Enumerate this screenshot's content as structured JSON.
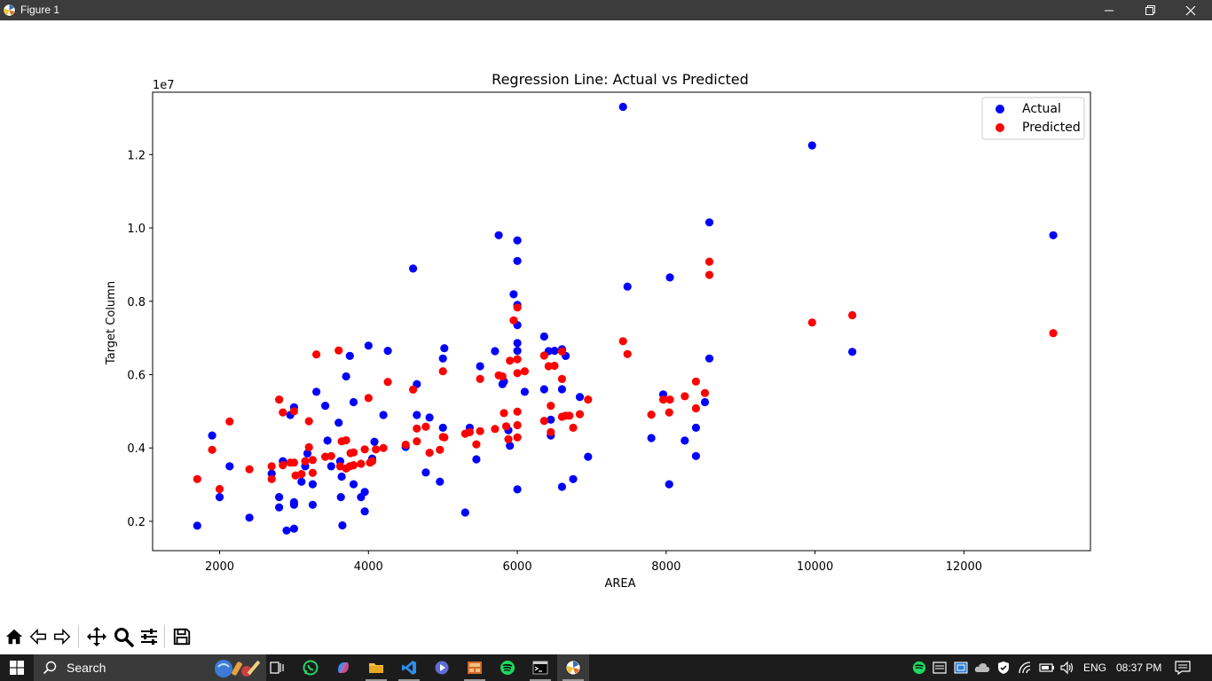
{
  "window": {
    "title": "Figure 1"
  },
  "toolbar": {
    "buttons": [
      "home-icon",
      "back-arrow-icon",
      "forward-arrow-icon",
      "pan-icon",
      "zoom-icon",
      "configure-subplots-icon",
      "save-icon"
    ]
  },
  "taskbar": {
    "search_placeholder": "Search",
    "apps": [
      "task-view-icon",
      "whatsapp-icon",
      "copilot-icon",
      "file-explorer-icon",
      "vscode-icon",
      "media-app-icon",
      "app-icon",
      "spotify-icon",
      "terminal-icon",
      "matplotlib-figure-icon"
    ],
    "language": "ENG",
    "time": "08:37 PM"
  },
  "colors": {
    "actual": "#0000ff",
    "predicted": "#ff0000",
    "titlebar": "#3c3c3c",
    "taskbar": "#1c1c1c"
  },
  "chart_data": {
    "type": "scatter",
    "title": "Regression Line: Actual vs Predicted",
    "xlabel": "AREA",
    "ylabel": "Target Column",
    "y_offset_label": "1e7",
    "xlim": [
      1100,
      13700
    ],
    "ylim": [
      1200000,
      13700000
    ],
    "xticks": [
      2000,
      4000,
      6000,
      8000,
      10000,
      12000
    ],
    "xtick_labels": [
      "2000",
      "4000",
      "6000",
      "8000",
      "10000",
      "12000"
    ],
    "yticks": [
      2000000,
      4000000,
      6000000,
      8000000,
      10000000,
      12000000
    ],
    "ytick_labels": [
      "0.2",
      "0.4",
      "0.6",
      "0.8",
      "1.0",
      "1.2"
    ],
    "grid": false,
    "legend_position": "top-right",
    "series": [
      {
        "name": "Actual",
        "color": "#0000ff",
        "points": [
          [
            1700,
            1880000
          ],
          [
            1900,
            4340000
          ],
          [
            2000,
            2660000
          ],
          [
            2135,
            3500000
          ],
          [
            2400,
            2100000
          ],
          [
            2700,
            3300000
          ],
          [
            2800,
            2660000
          ],
          [
            2800,
            2380000
          ],
          [
            2850,
            3640000
          ],
          [
            2900,
            1750000
          ],
          [
            2950,
            4900000
          ],
          [
            3000,
            5110000
          ],
          [
            3000,
            2520000
          ],
          [
            3000,
            2450000
          ],
          [
            3000,
            1800000
          ],
          [
            3100,
            3080000
          ],
          [
            3150,
            3500000
          ],
          [
            3180,
            3850000
          ],
          [
            3250,
            3010000
          ],
          [
            3250,
            2450000
          ],
          [
            3300,
            5530000
          ],
          [
            3420,
            5150000
          ],
          [
            3450,
            4200000
          ],
          [
            3500,
            3500000
          ],
          [
            3600,
            4690000
          ],
          [
            3620,
            3640000
          ],
          [
            3640,
            3220000
          ],
          [
            3630,
            2660000
          ],
          [
            3650,
            1890000
          ],
          [
            3700,
            5950000
          ],
          [
            3750,
            6510000
          ],
          [
            3800,
            5250000
          ],
          [
            3800,
            3010000
          ],
          [
            3900,
            2660000
          ],
          [
            3950,
            2800000
          ],
          [
            3950,
            2270000
          ],
          [
            4000,
            6790000
          ],
          [
            4050,
            3710000
          ],
          [
            4080,
            4170000
          ],
          [
            4200,
            4900000
          ],
          [
            4260,
            6650000
          ],
          [
            4500,
            4030000
          ],
          [
            4600,
            8890000
          ],
          [
            4650,
            5740000
          ],
          [
            4650,
            4900000
          ],
          [
            4770,
            3330000
          ],
          [
            4820,
            4830000
          ],
          [
            4960,
            3080000
          ],
          [
            5000,
            4550000
          ],
          [
            5000,
            6440000
          ],
          [
            5020,
            6720000
          ],
          [
            5300,
            2240000
          ],
          [
            5360,
            4550000
          ],
          [
            5450,
            3690000
          ],
          [
            5500,
            6230000
          ],
          [
            5700,
            6640000
          ],
          [
            5750,
            9800000
          ],
          [
            5800,
            5740000
          ],
          [
            5820,
            5810000
          ],
          [
            5880,
            4480000
          ],
          [
            5900,
            4060000
          ],
          [
            5950,
            8190000
          ],
          [
            6000,
            9100000
          ],
          [
            6000,
            9660000
          ],
          [
            6000,
            6860000
          ],
          [
            6000,
            7350000
          ],
          [
            6000,
            7900000
          ],
          [
            6000,
            6650000
          ],
          [
            6000,
            2870000
          ],
          [
            6100,
            5530000
          ],
          [
            6360,
            7040000
          ],
          [
            6360,
            5600000
          ],
          [
            6420,
            6640000
          ],
          [
            6450,
            4770000
          ],
          [
            6450,
            4340000
          ],
          [
            6500,
            6650000
          ],
          [
            6600,
            6690000
          ],
          [
            6600,
            5600000
          ],
          [
            6600,
            2940000
          ],
          [
            6650,
            6510000
          ],
          [
            6750,
            3150000
          ],
          [
            6840,
            5390000
          ],
          [
            6950,
            3760000
          ],
          [
            7420,
            13300000
          ],
          [
            7480,
            8400000
          ],
          [
            7800,
            4270000
          ],
          [
            7960,
            5460000
          ],
          [
            8040,
            3010000
          ],
          [
            8050,
            8650000
          ],
          [
            8250,
            4200000
          ],
          [
            8400,
            4550000
          ],
          [
            8400,
            3780000
          ],
          [
            8520,
            5250000
          ],
          [
            8580,
            10150000
          ],
          [
            8580,
            6440000
          ],
          [
            9960,
            12250000
          ],
          [
            10500,
            6620000
          ],
          [
            13200,
            9800000
          ]
        ]
      },
      {
        "name": "Predicted",
        "color": "#ff0000",
        "points": [
          [
            1700,
            3150000
          ],
          [
            1900,
            3950000
          ],
          [
            2000,
            2880000
          ],
          [
            2135,
            4720000
          ],
          [
            2400,
            3420000
          ],
          [
            2700,
            3150000
          ],
          [
            2700,
            3500000
          ],
          [
            2800,
            5320000
          ],
          [
            2850,
            4970000
          ],
          [
            2850,
            3530000
          ],
          [
            2950,
            3600000
          ],
          [
            3000,
            5000000
          ],
          [
            3000,
            3600000
          ],
          [
            3020,
            3250000
          ],
          [
            3100,
            3290000
          ],
          [
            3150,
            3640000
          ],
          [
            3200,
            4730000
          ],
          [
            3200,
            4020000
          ],
          [
            3250,
            3320000
          ],
          [
            3250,
            3670000
          ],
          [
            3300,
            6550000
          ],
          [
            3420,
            3760000
          ],
          [
            3500,
            3780000
          ],
          [
            3600,
            6660000
          ],
          [
            3620,
            3500000
          ],
          [
            3640,
            4180000
          ],
          [
            3700,
            4210000
          ],
          [
            3700,
            3440000
          ],
          [
            3750,
            3500000
          ],
          [
            3760,
            3860000
          ],
          [
            3800,
            3880000
          ],
          [
            3800,
            3530000
          ],
          [
            3900,
            3570000
          ],
          [
            3950,
            3960000
          ],
          [
            4000,
            5360000
          ],
          [
            4020,
            3600000
          ],
          [
            4050,
            3640000
          ],
          [
            4100,
            3960000
          ],
          [
            4200,
            4000000
          ],
          [
            4260,
            5800000
          ],
          [
            4500,
            4090000
          ],
          [
            4600,
            5590000
          ],
          [
            4650,
            4180000
          ],
          [
            4650,
            4530000
          ],
          [
            4770,
            4580000
          ],
          [
            4820,
            3870000
          ],
          [
            4960,
            3950000
          ],
          [
            5000,
            4300000
          ],
          [
            5000,
            6090000
          ],
          [
            5020,
            4290000
          ],
          [
            5300,
            4390000
          ],
          [
            5360,
            4430000
          ],
          [
            5450,
            4100000
          ],
          [
            5500,
            5880000
          ],
          [
            5500,
            4460000
          ],
          [
            5700,
            4520000
          ],
          [
            5750,
            5980000
          ],
          [
            5800,
            5950000
          ],
          [
            5820,
            4950000
          ],
          [
            5850,
            4590000
          ],
          [
            5880,
            4240000
          ],
          [
            5900,
            6380000
          ],
          [
            5950,
            7480000
          ],
          [
            6000,
            7830000
          ],
          [
            6000,
            6420000
          ],
          [
            6000,
            6040000
          ],
          [
            6000,
            4990000
          ],
          [
            6000,
            4620000
          ],
          [
            6000,
            4290000
          ],
          [
            6100,
            6090000
          ],
          [
            6360,
            6520000
          ],
          [
            6360,
            4740000
          ],
          [
            6420,
            6230000
          ],
          [
            6450,
            5150000
          ],
          [
            6450,
            4430000
          ],
          [
            6500,
            6240000
          ],
          [
            6600,
            6630000
          ],
          [
            6600,
            5880000
          ],
          [
            6600,
            4850000
          ],
          [
            6650,
            4880000
          ],
          [
            6700,
            4880000
          ],
          [
            6750,
            4550000
          ],
          [
            6840,
            4920000
          ],
          [
            6950,
            5320000
          ],
          [
            7420,
            6910000
          ],
          [
            7480,
            6560000
          ],
          [
            7800,
            4910000
          ],
          [
            7960,
            5320000
          ],
          [
            8040,
            4970000
          ],
          [
            8050,
            5320000
          ],
          [
            8250,
            5410000
          ],
          [
            8400,
            5810000
          ],
          [
            8400,
            5080000
          ],
          [
            8520,
            5500000
          ],
          [
            8580,
            9080000
          ],
          [
            8580,
            8720000
          ],
          [
            9960,
            7420000
          ],
          [
            10500,
            7620000
          ],
          [
            13200,
            7130000
          ]
        ]
      }
    ]
  }
}
